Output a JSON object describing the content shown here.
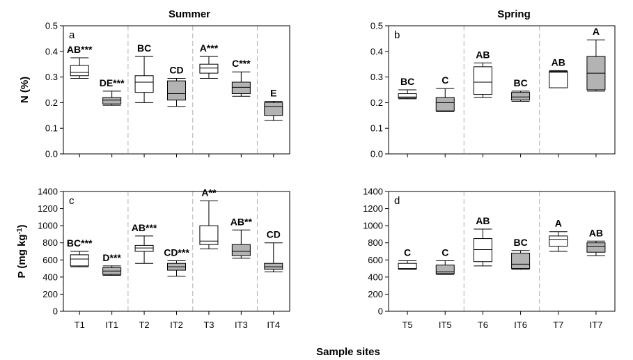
{
  "xlabel": "Sample sites",
  "chart_data": [
    {
      "type": "box",
      "panel": "a",
      "title": "Summer",
      "ylabel": "N (%)",
      "ylabel_suffix": "",
      "ylim": [
        0,
        0.5
      ],
      "yticks": [
        "0.0",
        "0.1",
        "0.2",
        "0.3",
        "0.4",
        "0.5"
      ],
      "ytick_values": [
        0,
        0.1,
        0.2,
        0.3,
        0.4,
        0.5
      ],
      "categories": [
        "T1",
        "IT1",
        "T2",
        "IT2",
        "T3",
        "IT3",
        "IT4"
      ],
      "separators_after": [
        1,
        3,
        5
      ],
      "boxes": [
        {
          "site": "T1",
          "fill": "white",
          "min": 0.295,
          "q1": 0.305,
          "median": 0.318,
          "q3": 0.345,
          "max": 0.375,
          "label": "AB***"
        },
        {
          "site": "IT1",
          "fill": "gray",
          "min": 0.19,
          "q1": 0.195,
          "median": 0.21,
          "q3": 0.22,
          "max": 0.245,
          "label": "DE***"
        },
        {
          "site": "T2",
          "fill": "white",
          "min": 0.2,
          "q1": 0.24,
          "median": 0.28,
          "q3": 0.305,
          "max": 0.38,
          "label": "BC"
        },
        {
          "site": "IT2",
          "fill": "gray",
          "min": 0.185,
          "q1": 0.21,
          "median": 0.235,
          "q3": 0.285,
          "max": 0.295,
          "label": "CD"
        },
        {
          "site": "T3",
          "fill": "white",
          "min": 0.295,
          "q1": 0.315,
          "median": 0.335,
          "q3": 0.35,
          "max": 0.38,
          "label": "A***"
        },
        {
          "site": "IT3",
          "fill": "gray",
          "min": 0.225,
          "q1": 0.235,
          "median": 0.26,
          "q3": 0.28,
          "max": 0.32,
          "label": "C***"
        },
        {
          "site": "IT4",
          "fill": "gray",
          "min": 0.13,
          "q1": 0.15,
          "median": 0.185,
          "q3": 0.2,
          "max": 0.205,
          "label": "E"
        }
      ]
    },
    {
      "type": "box",
      "panel": "b",
      "title": "Spring",
      "ylabel": "",
      "ylabel_suffix": "",
      "ylim": [
        0,
        0.5
      ],
      "yticks": [
        "0.0",
        "0.1",
        "0.2",
        "0.3",
        "0.4",
        "0.5"
      ],
      "ytick_values": [
        0,
        0.1,
        0.2,
        0.3,
        0.4,
        0.5
      ],
      "categories": [
        "T5",
        "IT5",
        "T6",
        "IT6",
        "T7",
        "IT7"
      ],
      "separators_after": [
        1,
        3
      ],
      "boxes": [
        {
          "site": "T5",
          "fill": "white",
          "min": 0.215,
          "q1": 0.218,
          "median": 0.222,
          "q3": 0.235,
          "max": 0.25,
          "label": "BC"
        },
        {
          "site": "IT5",
          "fill": "gray",
          "min": 0.165,
          "q1": 0.168,
          "median": 0.2,
          "q3": 0.22,
          "max": 0.255,
          "label": "C"
        },
        {
          "site": "T6",
          "fill": "white",
          "min": 0.22,
          "q1": 0.232,
          "median": 0.28,
          "q3": 0.34,
          "max": 0.355,
          "label": "AB"
        },
        {
          "site": "IT6",
          "fill": "gray",
          "min": 0.205,
          "q1": 0.21,
          "median": 0.222,
          "q3": 0.24,
          "max": 0.245,
          "label": "BC"
        },
        {
          "site": "T7",
          "fill": "white",
          "min": 0.258,
          "q1": 0.258,
          "median": 0.318,
          "q3": 0.322,
          "max": 0.325,
          "label": "AB"
        },
        {
          "site": "IT7",
          "fill": "gray",
          "min": 0.245,
          "q1": 0.25,
          "median": 0.315,
          "q3": 0.38,
          "max": 0.445,
          "label": "A"
        }
      ]
    },
    {
      "type": "box",
      "panel": "c",
      "title": "",
      "ylabel": "P (mg kg",
      "ylabel_suffix": "-1",
      "ylabel_close": ")",
      "ylim": [
        0,
        1400
      ],
      "yticks": [
        "0",
        "200",
        "400",
        "600",
        "800",
        "1000",
        "1200",
        "1400"
      ],
      "ytick_values": [
        0,
        200,
        400,
        600,
        800,
        1000,
        1200,
        1400
      ],
      "categories": [
        "T1",
        "IT1",
        "T2",
        "IT2",
        "T3",
        "IT3",
        "IT4"
      ],
      "separators_after": [
        1,
        3,
        5
      ],
      "boxes": [
        {
          "site": "T1",
          "fill": "white",
          "min": 520,
          "q1": 530,
          "median": 610,
          "q3": 660,
          "max": 700,
          "label": "BC***"
        },
        {
          "site": "IT1",
          "fill": "gray",
          "min": 420,
          "q1": 430,
          "median": 470,
          "q3": 510,
          "max": 530,
          "label": "D***"
        },
        {
          "site": "T2",
          "fill": "white",
          "min": 560,
          "q1": 700,
          "median": 740,
          "q3": 770,
          "max": 880,
          "label": "AB***"
        },
        {
          "site": "IT2",
          "fill": "gray",
          "min": 410,
          "q1": 480,
          "median": 520,
          "q3": 560,
          "max": 590,
          "label": "CD***"
        },
        {
          "site": "T3",
          "fill": "white",
          "min": 730,
          "q1": 780,
          "median": 820,
          "q3": 1000,
          "max": 1290,
          "label": "A**"
        },
        {
          "site": "IT3",
          "fill": "gray",
          "min": 620,
          "q1": 650,
          "median": 700,
          "q3": 780,
          "max": 950,
          "label": "AB**"
        },
        {
          "site": "IT4",
          "fill": "gray",
          "min": 460,
          "q1": 490,
          "median": 520,
          "q3": 560,
          "max": 800,
          "label": "CD"
        }
      ]
    },
    {
      "type": "box",
      "panel": "d",
      "title": "",
      "ylabel": "",
      "ylabel_suffix": "",
      "ylim": [
        0,
        1400
      ],
      "yticks": [
        "0",
        "200",
        "400",
        "600",
        "800",
        "1000",
        "1200",
        "1400"
      ],
      "ytick_values": [
        0,
        200,
        400,
        600,
        800,
        1000,
        1200,
        1400
      ],
      "categories": [
        "T5",
        "IT5",
        "T6",
        "IT6",
        "T7",
        "IT7"
      ],
      "separators_after": [
        1,
        3
      ],
      "boxes": [
        {
          "site": "T5",
          "fill": "white",
          "min": 490,
          "q1": 495,
          "median": 500,
          "q3": 560,
          "max": 590,
          "label": "C"
        },
        {
          "site": "IT5",
          "fill": "gray",
          "min": 430,
          "q1": 440,
          "median": 460,
          "q3": 540,
          "max": 590,
          "label": "C"
        },
        {
          "site": "T6",
          "fill": "white",
          "min": 530,
          "q1": 580,
          "median": 720,
          "q3": 850,
          "max": 960,
          "label": "AB"
        },
        {
          "site": "IT6",
          "fill": "gray",
          "min": 490,
          "q1": 500,
          "median": 550,
          "q3": 680,
          "max": 710,
          "label": "BC"
        },
        {
          "site": "T7",
          "fill": "white",
          "min": 700,
          "q1": 760,
          "median": 840,
          "q3": 880,
          "max": 930,
          "label": "A"
        },
        {
          "site": "IT7",
          "fill": "gray",
          "min": 650,
          "q1": 690,
          "median": 760,
          "q3": 800,
          "max": 820,
          "label": "AB"
        }
      ]
    }
  ],
  "colors": {
    "white_box": "#ffffff",
    "gray_box": "#b3b3b3",
    "separator": "#bdbdbd",
    "line": "#000000"
  }
}
